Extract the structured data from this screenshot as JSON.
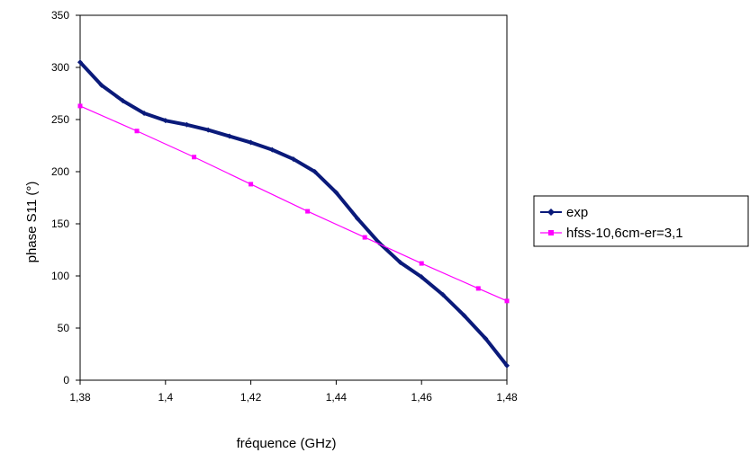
{
  "chart_data": {
    "type": "line",
    "title": "",
    "xlabel": "fréquence (GHz)",
    "ylabel": "phase S11 (°)",
    "xlim": [
      1.38,
      1.48
    ],
    "ylim": [
      0,
      350
    ],
    "x_ticks": [
      "1,38",
      "1,4",
      "1,42",
      "1,44",
      "1,46",
      "1,48"
    ],
    "y_ticks": [
      "0",
      "50",
      "100",
      "150",
      "200",
      "250",
      "300",
      "350"
    ],
    "grid": false,
    "legend_position": "right",
    "series": [
      {
        "name": "exp",
        "color": "#0a1a7a",
        "marker": "diamond",
        "x": [
          1.38,
          1.385,
          1.39,
          1.395,
          1.4,
          1.405,
          1.41,
          1.415,
          1.42,
          1.425,
          1.43,
          1.435,
          1.44,
          1.445,
          1.45,
          1.455,
          1.46,
          1.465,
          1.47,
          1.475,
          1.48
        ],
        "y": [
          305,
          283,
          268,
          256,
          249,
          245,
          240,
          234,
          228,
          221,
          212,
          200,
          180,
          155,
          132,
          113,
          99,
          82,
          62,
          40,
          14
        ]
      },
      {
        "name": "hfss-10,6cm-er=3,1",
        "color": "#ff00ff",
        "marker": "square",
        "x": [
          1.38,
          1.3933,
          1.4067,
          1.42,
          1.4333,
          1.4467,
          1.46,
          1.4733,
          1.48
        ],
        "y": [
          263,
          239,
          214,
          188,
          162,
          137,
          112,
          88,
          76
        ]
      }
    ]
  }
}
